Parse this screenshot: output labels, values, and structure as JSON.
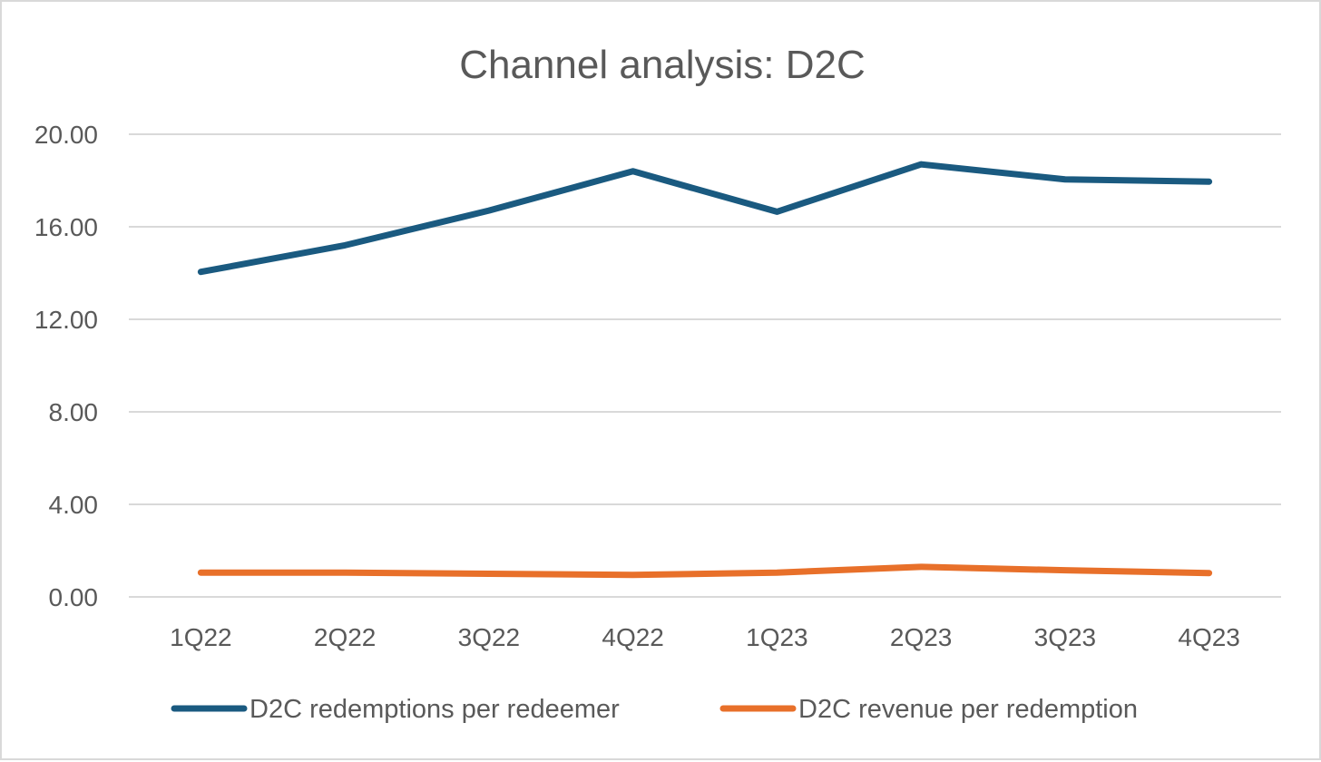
{
  "chart_data": {
    "type": "line",
    "title": "Channel analysis: D2C",
    "xlabel": "",
    "ylabel": "",
    "categories": [
      "1Q22",
      "2Q22",
      "3Q22",
      "4Q22",
      "1Q23",
      "2Q23",
      "3Q23",
      "4Q23"
    ],
    "y_ticks": [
      "0.00",
      "4.00",
      "8.00",
      "12.00",
      "16.00",
      "20.00"
    ],
    "ylim": [
      0,
      20
    ],
    "grid": true,
    "legend_position": "bottom",
    "series": [
      {
        "name": "D2C redemptions per redeemer",
        "color": "#1a5a80",
        "values": [
          14.05,
          15.2,
          16.7,
          18.4,
          16.65,
          18.7,
          18.05,
          17.95
        ]
      },
      {
        "name": "D2C revenue per redemption",
        "color": "#e8702a",
        "values": [
          1.05,
          1.05,
          1.0,
          0.95,
          1.05,
          1.3,
          1.15,
          1.03
        ]
      }
    ]
  }
}
